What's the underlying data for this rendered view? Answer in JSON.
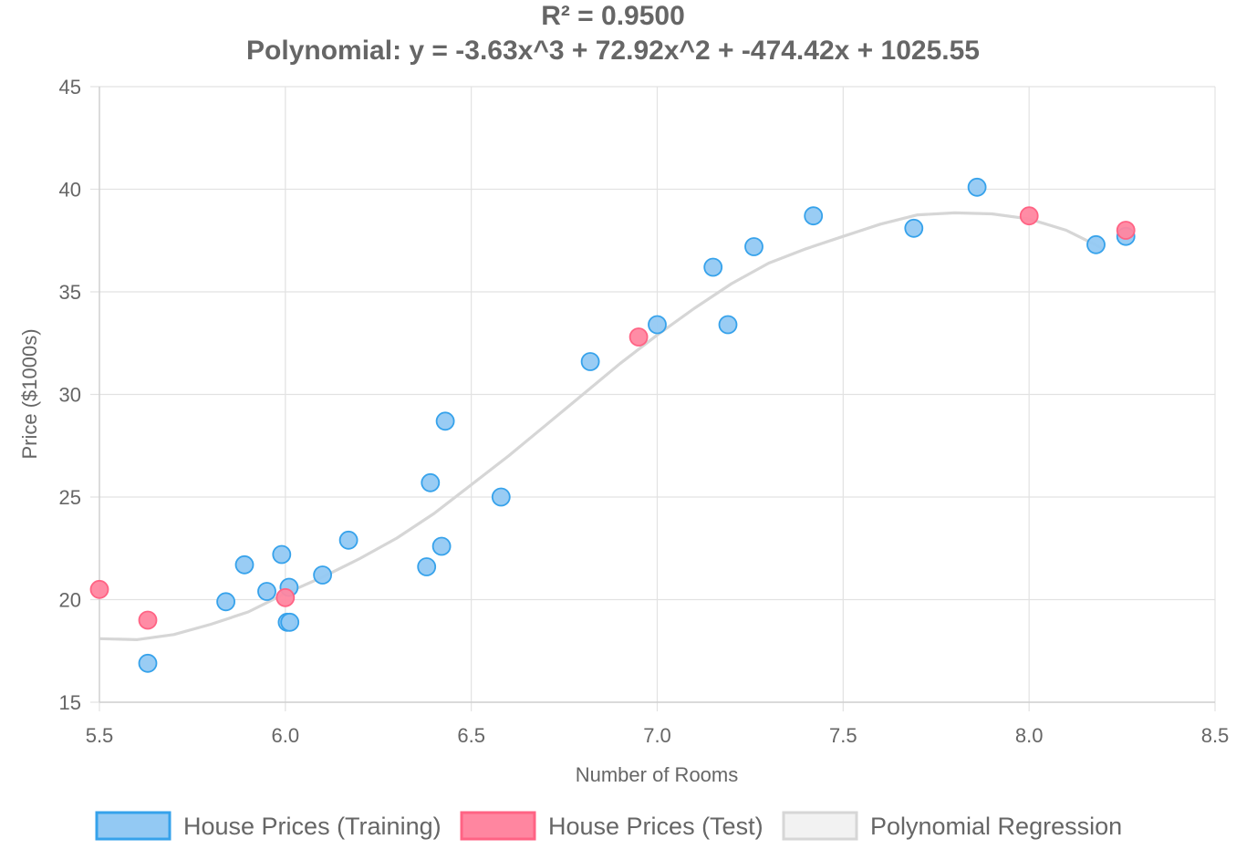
{
  "chart_data": {
    "type": "scatter",
    "title": "R² = 0.9500",
    "subtitle": "Polynomial: y = -3.63x^3 + 72.92x^2 + -474.42x + 1025.55",
    "xlabel": "Number of Rooms",
    "ylabel": "Price ($1000s)",
    "xlim": [
      5.5,
      8.5
    ],
    "ylim": [
      15,
      45
    ],
    "xticks": [
      5.5,
      6.0,
      6.5,
      7.0,
      7.5,
      8.0,
      8.5
    ],
    "xtick_labels": [
      "5.5",
      "6.0",
      "6.5",
      "7.0",
      "7.5",
      "8.0",
      "8.5"
    ],
    "yticks": [
      15,
      20,
      25,
      30,
      35,
      40,
      45
    ],
    "ytick_labels": [
      "15",
      "20",
      "25",
      "30",
      "35",
      "40",
      "45"
    ],
    "grid": true,
    "legend_position": "bottom",
    "series": [
      {
        "name": "House Prices (Training)",
        "kind": "scatter",
        "color": "#36a2eb",
        "fill": "#93c9f3",
        "points": [
          [
            5.63,
            16.9
          ],
          [
            5.84,
            19.9
          ],
          [
            5.89,
            21.7
          ],
          [
            5.95,
            20.4
          ],
          [
            5.99,
            22.2
          ],
          [
            6.01,
            20.6
          ],
          [
            6.005,
            18.9
          ],
          [
            6.012,
            18.9
          ],
          [
            6.1,
            21.2
          ],
          [
            6.17,
            22.9
          ],
          [
            6.38,
            21.6
          ],
          [
            6.39,
            25.7
          ],
          [
            6.42,
            22.6
          ],
          [
            6.43,
            28.7
          ],
          [
            6.58,
            25.0
          ],
          [
            6.82,
            31.6
          ],
          [
            7.0,
            33.4
          ],
          [
            7.15,
            36.2
          ],
          [
            7.19,
            33.4
          ],
          [
            7.26,
            37.2
          ],
          [
            7.42,
            38.7
          ],
          [
            7.69,
            38.1
          ],
          [
            7.86,
            40.1
          ],
          [
            8.18,
            37.3
          ],
          [
            8.26,
            37.7
          ]
        ]
      },
      {
        "name": "House Prices (Test)",
        "kind": "scatter",
        "color": "#ff6384",
        "fill": "#ff86a0",
        "points": [
          [
            5.5,
            20.5
          ],
          [
            5.63,
            19.0
          ],
          [
            6.0,
            20.1
          ],
          [
            6.95,
            32.8
          ],
          [
            8.0,
            38.7
          ],
          [
            8.26,
            38.0
          ]
        ]
      },
      {
        "name": "Polynomial Regression",
        "kind": "line",
        "color": "#d6d6d6",
        "fill": "#f2f2f2",
        "coefficients": [
          -3.63,
          72.92,
          -474.42,
          1025.55
        ],
        "points": [
          [
            5.5,
            18.1
          ],
          [
            5.6,
            18.05
          ],
          [
            5.7,
            18.3
          ],
          [
            5.8,
            18.8
          ],
          [
            5.9,
            19.4
          ],
          [
            6.0,
            20.3
          ],
          [
            6.1,
            21.1
          ],
          [
            6.2,
            22.0
          ],
          [
            6.3,
            23.0
          ],
          [
            6.4,
            24.2
          ],
          [
            6.5,
            25.6
          ],
          [
            6.6,
            27.0
          ],
          [
            6.7,
            28.5
          ],
          [
            6.8,
            30.0
          ],
          [
            6.9,
            31.5
          ],
          [
            7.0,
            32.9
          ],
          [
            7.1,
            34.2
          ],
          [
            7.2,
            35.4
          ],
          [
            7.3,
            36.4
          ],
          [
            7.4,
            37.1
          ],
          [
            7.5,
            37.7
          ],
          [
            7.6,
            38.3
          ],
          [
            7.7,
            38.75
          ],
          [
            7.8,
            38.85
          ],
          [
            7.9,
            38.8
          ],
          [
            8.0,
            38.55
          ],
          [
            8.1,
            38.0
          ],
          [
            8.2,
            37.1
          ]
        ]
      }
    ]
  }
}
